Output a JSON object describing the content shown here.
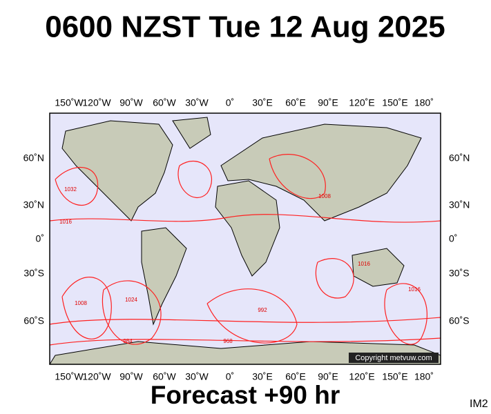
{
  "title": "0600 NZST Tue 12 Aug 2025",
  "footer": "Forecast +90 hr",
  "image_id": "IM2",
  "copyright": "Copyright metvuw.com",
  "map": {
    "longitude_labels": [
      "150˚W",
      "120˚W",
      "90˚W",
      "60˚W",
      "30˚W",
      "0˚",
      "30˚E",
      "60˚E",
      "90˚E",
      "120˚E",
      "150˚E",
      "180˚"
    ],
    "latitude_labels": [
      "60˚N",
      "30˚N",
      "0˚",
      "30˚S",
      "60˚S"
    ],
    "isobar_labels": [
      "1032",
      "1016",
      "1008",
      "1024",
      "1016",
      "992",
      "984",
      "968",
      "1016",
      "1008"
    ]
  }
}
